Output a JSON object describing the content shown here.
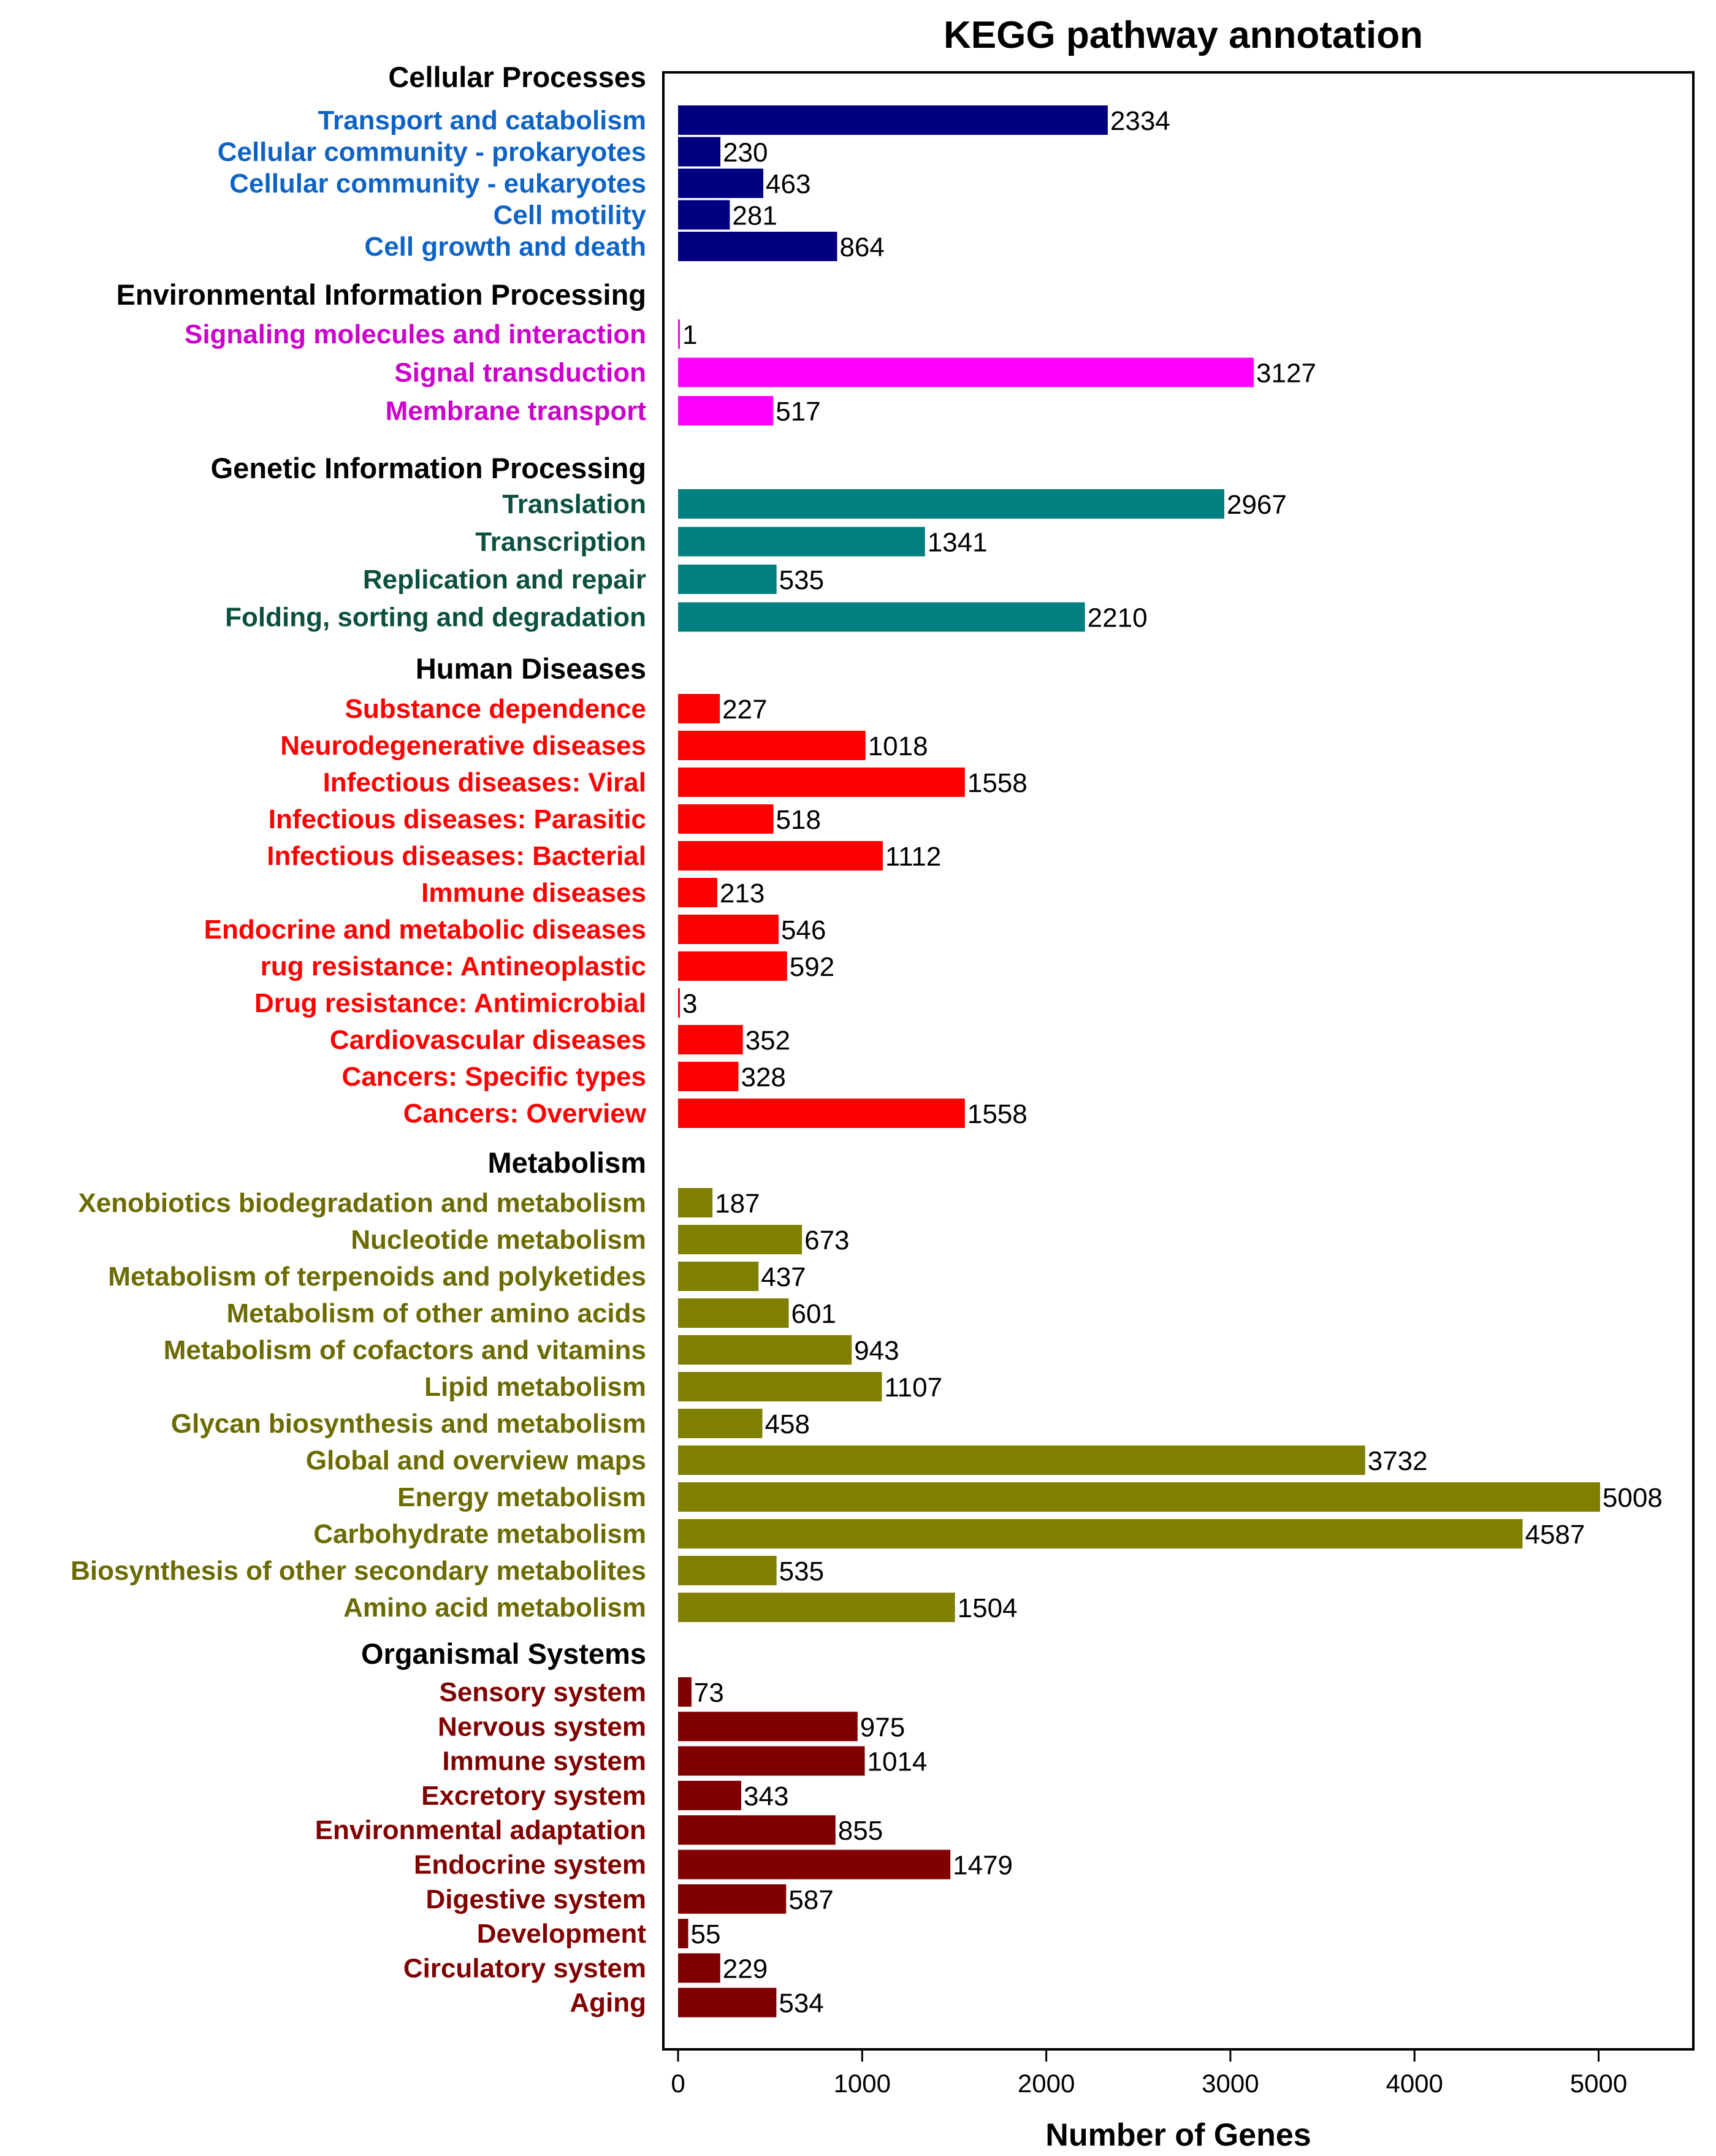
{
  "chart_data": {
    "type": "bar",
    "orientation": "horizontal",
    "title": "KEGG  pathway annotation",
    "xlabel": "Number of Genes",
    "ylabel": "",
    "xlim": [
      0,
      5500
    ],
    "xticks": [
      0,
      1000,
      2000,
      3000,
      4000,
      5000
    ],
    "grid": false,
    "groups": [
      {
        "name": "Cellular Processes",
        "color": "#000080",
        "label_color": "#0E63C4",
        "categories": [
          "Transport and catabolism",
          "Cellular community - prokaryotes",
          "Cellular community - eukaryotes",
          "Cell motility",
          "Cell growth and death"
        ],
        "values": [
          2334,
          230,
          463,
          281,
          864
        ]
      },
      {
        "name": "Environmental Information Processing",
        "color": "#FF00FF",
        "label_color": "#CC00CC",
        "categories": [
          "Signaling molecules and interaction",
          "Signal transduction",
          "Membrane transport"
        ],
        "values": [
          1,
          3127,
          517
        ]
      },
      {
        "name": "Genetic Information Processing",
        "color": "#008080",
        "label_color": "#0B4F3E",
        "categories": [
          "Translation",
          "Transcription",
          "Replication and repair",
          "Folding, sorting and degradation"
        ],
        "values": [
          2967,
          1341,
          535,
          2210
        ]
      },
      {
        "name": "Human Diseases",
        "color": "#FF0000",
        "label_color": "#FF0000",
        "categories": [
          "Substance dependence",
          "Neurodegenerative diseases",
          "Infectious diseases: Viral",
          "Infectious diseases: Parasitic",
          "Infectious diseases: Bacterial",
          "Immune diseases",
          "Endocrine and metabolic diseases",
          "rug resistance: Antineoplastic",
          "Drug resistance: Antimicrobial",
          "Cardiovascular diseases",
          "Cancers: Specific types",
          "Cancers: Overview"
        ],
        "values": [
          227,
          1018,
          1558,
          518,
          1112,
          213,
          546,
          592,
          3,
          352,
          328,
          1558
        ]
      },
      {
        "name": "Metabolism",
        "color": "#808000",
        "label_color": "#6B6B00",
        "categories": [
          "Xenobiotics biodegradation and metabolism",
          "Nucleotide metabolism",
          "Metabolism of terpenoids and polyketides",
          "Metabolism of other amino acids",
          "Metabolism of cofactors and vitamins",
          "Lipid metabolism",
          "Glycan biosynthesis and metabolism",
          "Global and overview maps",
          "Energy metabolism",
          "Carbohydrate metabolism",
          "Biosynthesis of other secondary metabolites",
          "Amino acid metabolism"
        ],
        "values": [
          187,
          673,
          437,
          601,
          943,
          1107,
          458,
          3732,
          5008,
          4587,
          535,
          1504
        ]
      },
      {
        "name": "Organismal Systems",
        "color": "#800000",
        "label_color": "#800000",
        "categories": [
          "Sensory system",
          "Nervous system",
          "Immune system",
          "Excretory system",
          "Environmental adaptation",
          "Endocrine system",
          "Digestive system",
          "Development",
          "Circulatory system",
          "Aging"
        ],
        "values": [
          73,
          975,
          1014,
          343,
          855,
          1479,
          587,
          55,
          229,
          534
        ]
      }
    ]
  }
}
